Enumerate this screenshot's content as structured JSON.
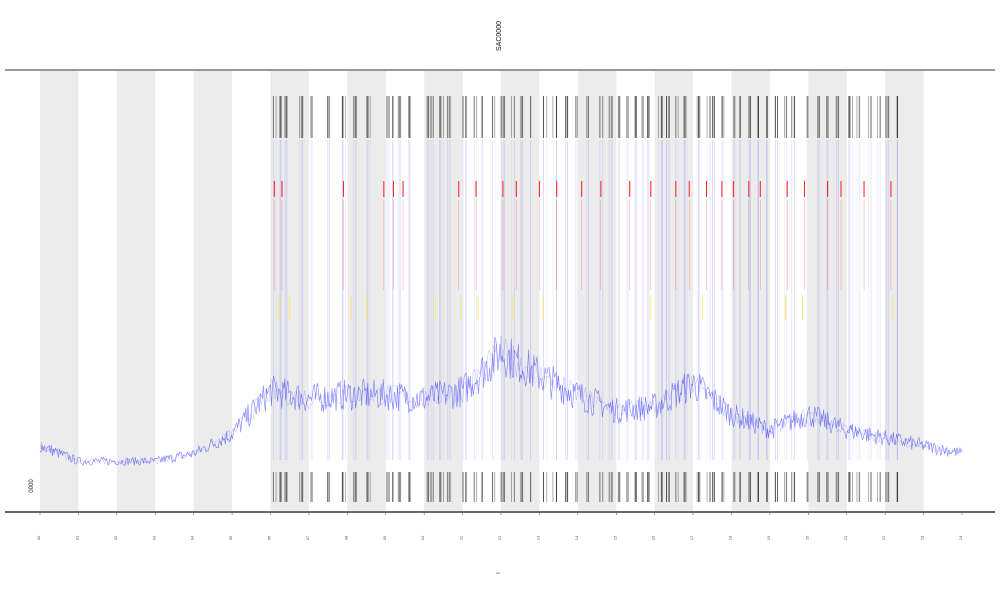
{
  "chart_data": {
    "type": "line",
    "title": "SAC0000",
    "xlabel": "t",
    "ylabel": "",
    "legend_label": "0000",
    "x_tick_labels": [
      "00",
      "01",
      "02",
      "03",
      "04",
      "05",
      "06",
      "07",
      "08",
      "09",
      "10",
      "11",
      "12",
      "13",
      "14",
      "15",
      "16",
      "17",
      "18",
      "19",
      "20",
      "21",
      "22",
      "23",
      "24"
    ],
    "x": [
      0,
      1,
      2,
      3,
      4,
      5,
      6,
      7,
      8,
      9,
      10,
      11,
      12,
      13,
      14,
      15,
      16,
      17,
      18,
      19,
      20,
      21,
      22,
      23,
      24
    ],
    "series": [
      {
        "values": [
          0.06,
          0.02,
          0.02,
          0.02,
          0.04,
          0.09,
          0.2,
          0.18,
          0.19,
          0.19,
          0.18,
          0.2,
          0.3,
          0.24,
          0.19,
          0.15,
          0.16,
          0.22,
          0.14,
          0.1,
          0.14,
          0.1,
          0.08,
          0.06,
          0.04
        ]
      }
    ],
    "shaded_bands": [
      0,
      2,
      4,
      6,
      8,
      10,
      12,
      14,
      16,
      18,
      20,
      22
    ],
    "event_hours": [
      6.1,
      6.25,
      6.4,
      6.8,
      7.05,
      7.5,
      7.9,
      8.2,
      8.55,
      9.05,
      9.2,
      9.35,
      9.6,
      10.1,
      10.2,
      10.45,
      10.65,
      11.05,
      11.35,
      11.5,
      11.8,
      12.05,
      12.3,
      12.55,
      12.75,
      13.15,
      13.4,
      13.7,
      13.95,
      14.25,
      14.6,
      14.85,
      15.05,
      15.3,
      15.5,
      15.7,
      15.85,
      16.15,
      16.35,
      16.6,
      16.8,
      17.15,
      17.4,
      17.55,
      17.75,
      18.1,
      18.25,
      18.45,
      18.7,
      18.9,
      19.15,
      19.4,
      19.6,
      19.95,
      20.25,
      20.5,
      20.75,
      21.1,
      21.3,
      21.6,
      21.85,
      22.05,
      22.3
    ],
    "red_band_hours": [
      6.1,
      6.3,
      7.9,
      8.95,
      9.2,
      9.45,
      10.9,
      11.35,
      12.05,
      12.4,
      13.0,
      13.45,
      14.1,
      14.6,
      15.35,
      15.9,
      16.55,
      16.9,
      17.35,
      17.75,
      18.05,
      18.45,
      18.75,
      19.45,
      19.9,
      20.5,
      20.85,
      21.45,
      22.15
    ],
    "yellow_band_hours": [
      6.2,
      6.5,
      8.1,
      8.5,
      10.3,
      10.95,
      11.4,
      12.3,
      13.1,
      15.9,
      17.25,
      19.4,
      19.85,
      22.2
    ],
    "ylim": [
      0,
      1
    ],
    "grid": false
  },
  "colors": {
    "line": "#1a1aff",
    "shade": "#ececec",
    "red": "#ff2a2a",
    "yellow": "#ffe45a",
    "tick": "#222222",
    "axis": "#111111"
  }
}
